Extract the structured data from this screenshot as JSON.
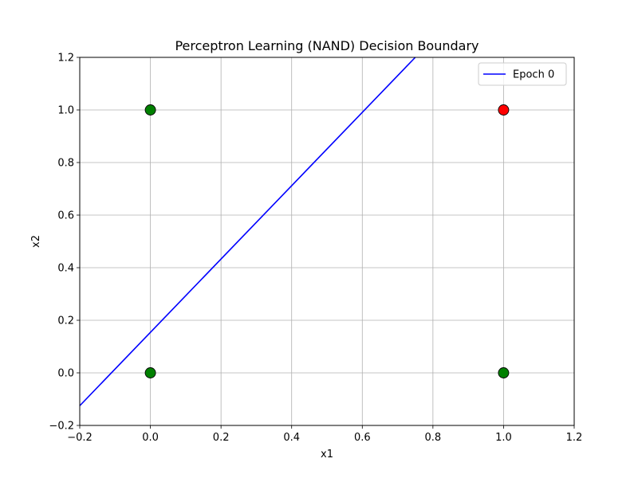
{
  "chart_data": {
    "type": "scatter",
    "title": "Perceptron Learning (NAND) Decision Boundary",
    "xlabel": "x1",
    "ylabel": "x2",
    "xlim": [
      -0.2,
      1.2
    ],
    "ylim": [
      -0.2,
      1.2
    ],
    "xticks": [
      -0.2,
      0.0,
      0.2,
      0.4,
      0.6,
      0.8,
      1.0,
      1.2
    ],
    "yticks": [
      -0.2,
      0.0,
      0.2,
      0.4,
      0.6,
      0.8,
      1.0,
      1.2
    ],
    "xtick_labels": [
      "−0.2",
      "0.0",
      "0.2",
      "0.4",
      "0.6",
      "0.8",
      "1.0",
      "1.2"
    ],
    "ytick_labels": [
      "−0.2",
      "0.0",
      "0.2",
      "0.4",
      "0.6",
      "0.8",
      "1.0",
      "1.2"
    ],
    "grid": true,
    "legend_placement": "top-right",
    "points": [
      {
        "x": 0,
        "y": 0,
        "color": "#008000"
      },
      {
        "x": 0,
        "y": 1,
        "color": "#008000"
      },
      {
        "x": 1,
        "y": 0,
        "color": "#008000"
      },
      {
        "x": 1,
        "y": 1,
        "color": "#ff0000"
      }
    ],
    "lines": [
      {
        "name": "Epoch 0",
        "color": "#0000ff",
        "x": [
          -0.2,
          0.75
        ],
        "y": [
          -0.125,
          1.2
        ]
      }
    ]
  }
}
